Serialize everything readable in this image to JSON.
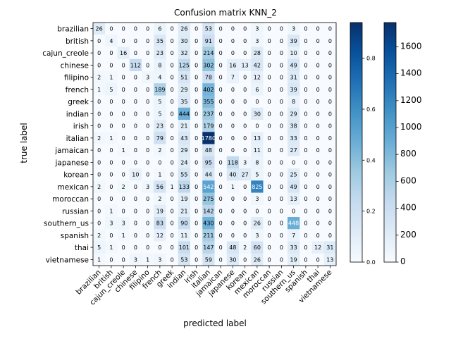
{
  "chart_data": {
    "type": "heatmap",
    "title": "Confusion matrix KNN_2",
    "xlabel": "predicted label",
    "ylabel": "true label",
    "classes": [
      "brazilian",
      "british",
      "cajun_creole",
      "chinese",
      "filipino",
      "french",
      "greek",
      "indian",
      "irish",
      "italian",
      "jamaican",
      "japanese",
      "korean",
      "mexican",
      "moroccan",
      "russian",
      "southern_us",
      "spanish",
      "thai",
      "vietnamese"
    ],
    "matrix": [
      [
        26,
        0,
        0,
        0,
        0,
        6,
        0,
        26,
        0,
        53,
        0,
        0,
        0,
        3,
        0,
        0,
        3,
        0,
        0,
        0
      ],
      [
        0,
        4,
        0,
        0,
        0,
        35,
        0,
        30,
        0,
        91,
        0,
        0,
        0,
        3,
        0,
        0,
        39,
        0,
        0,
        0
      ],
      [
        0,
        0,
        16,
        0,
        0,
        23,
        0,
        32,
        0,
        214,
        0,
        0,
        0,
        28,
        0,
        0,
        10,
        0,
        0,
        0
      ],
      [
        0,
        0,
        0,
        112,
        0,
        8,
        0,
        125,
        0,
        302,
        0,
        16,
        13,
        42,
        0,
        0,
        49,
        0,
        0,
        0
      ],
      [
        2,
        1,
        0,
        0,
        3,
        4,
        0,
        51,
        0,
        78,
        0,
        7,
        0,
        12,
        0,
        0,
        31,
        0,
        0,
        0
      ],
      [
        1,
        5,
        0,
        0,
        0,
        189,
        0,
        29,
        0,
        402,
        0,
        0,
        0,
        6,
        0,
        0,
        39,
        0,
        0,
        0
      ],
      [
        0,
        0,
        0,
        0,
        0,
        5,
        0,
        35,
        0,
        355,
        0,
        0,
        0,
        0,
        0,
        0,
        8,
        0,
        0,
        0
      ],
      [
        0,
        0,
        0,
        0,
        0,
        5,
        0,
        444,
        0,
        237,
        0,
        0,
        0,
        30,
        0,
        0,
        29,
        0,
        0,
        0
      ],
      [
        0,
        0,
        0,
        0,
        0,
        23,
        0,
        21,
        0,
        179,
        0,
        0,
        0,
        0,
        0,
        0,
        38,
        0,
        0,
        0
      ],
      [
        2,
        1,
        0,
        0,
        0,
        79,
        0,
        43,
        0,
        1780,
        0,
        0,
        0,
        13,
        0,
        0,
        33,
        0,
        0,
        0
      ],
      [
        0,
        0,
        1,
        0,
        0,
        2,
        0,
        29,
        0,
        48,
        0,
        0,
        0,
        11,
        0,
        0,
        27,
        0,
        0,
        0
      ],
      [
        0,
        0,
        0,
        0,
        0,
        0,
        0,
        24,
        0,
        95,
        0,
        118,
        3,
        8,
        0,
        0,
        0,
        0,
        0,
        0
      ],
      [
        0,
        0,
        0,
        10,
        0,
        1,
        0,
        55,
        0,
        44,
        0,
        40,
        27,
        5,
        0,
        0,
        25,
        0,
        0,
        0
      ],
      [
        2,
        0,
        2,
        0,
        3,
        56,
        1,
        133,
        0,
        542,
        0,
        1,
        0,
        825,
        0,
        0,
        49,
        0,
        0,
        0
      ],
      [
        0,
        0,
        0,
        0,
        0,
        2,
        0,
        19,
        0,
        275,
        0,
        0,
        0,
        3,
        0,
        0,
        13,
        0,
        0,
        0
      ],
      [
        0,
        1,
        0,
        0,
        0,
        19,
        0,
        21,
        0,
        142,
        0,
        0,
        0,
        0,
        0,
        0,
        0,
        0,
        0,
        0
      ],
      [
        0,
        3,
        3,
        0,
        0,
        83,
        0,
        90,
        0,
        430,
        0,
        0,
        0,
        26,
        0,
        0,
        448,
        0,
        0,
        0
      ],
      [
        2,
        0,
        1,
        0,
        0,
        12,
        0,
        11,
        0,
        211,
        0,
        0,
        0,
        3,
        0,
        0,
        7,
        0,
        0,
        0
      ],
      [
        5,
        1,
        0,
        0,
        0,
        0,
        0,
        101,
        0,
        147,
        0,
        48,
        2,
        60,
        0,
        0,
        33,
        0,
        12,
        31
      ],
      [
        1,
        0,
        0,
        3,
        1,
        3,
        0,
        53,
        0,
        59,
        0,
        30,
        0,
        26,
        0,
        0,
        19,
        0,
        0,
        13
      ]
    ],
    "colorbars": [
      {
        "min": 0.0,
        "max": 0.94,
        "ticks": [
          "0.0",
          "0.2",
          "0.4",
          "0.6",
          "0.8"
        ],
        "tick_values": [
          0,
          0.2,
          0.4,
          0.6,
          0.8
        ]
      },
      {
        "min": 0,
        "max": 1780,
        "ticks": [
          "0",
          "200",
          "400",
          "600",
          "800",
          "1000",
          "1200",
          "1400",
          "1600"
        ],
        "tick_values": [
          0,
          200,
          400,
          600,
          800,
          1000,
          1200,
          1400,
          1600
        ]
      }
    ],
    "colormap": "Blues",
    "grid": false
  }
}
